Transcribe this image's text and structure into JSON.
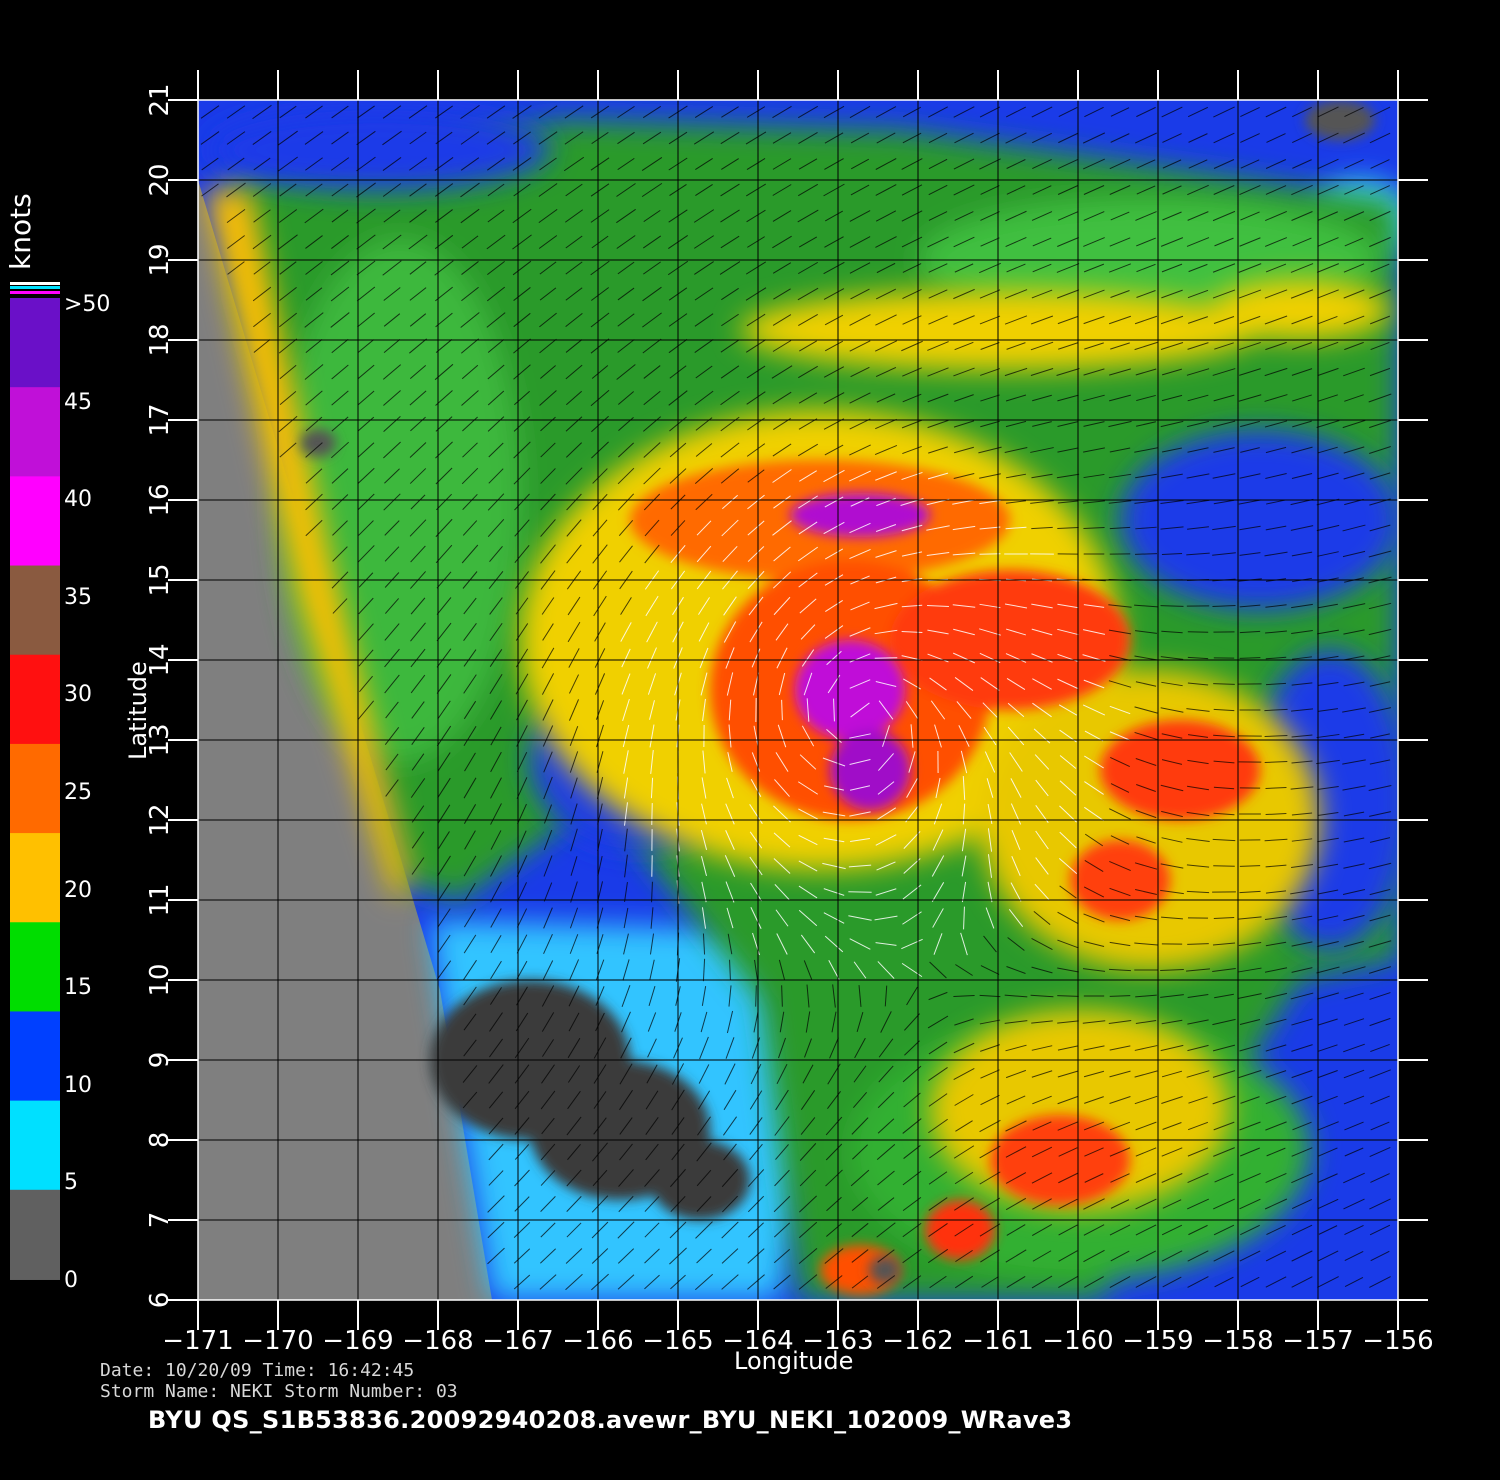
{
  "colorbar": {
    "title": "knots",
    "labels": [
      ">50",
      "45",
      "40",
      "35",
      "30",
      "25",
      "20",
      "15",
      "10",
      "5",
      "0"
    ],
    "colors": [
      "#6a10c8",
      "#c010d8",
      "#ff00ff",
      "#8a5a40",
      "#ff1010",
      "#ff6a00",
      "#ffc000",
      "#00dd00",
      "#0040ff",
      "#00e0ff",
      "#606060"
    ]
  },
  "axes": {
    "xlabel": "Longitude",
    "ylabel": "Latitude",
    "x_ticks": [
      "−171",
      "−170",
      "−169",
      "−168",
      "−167",
      "−166",
      "−165",
      "−164",
      "−163",
      "−162",
      "−161",
      "−160",
      "−159",
      "−158",
      "−157",
      "−156"
    ],
    "y_ticks": [
      "6",
      "7",
      "8",
      "9",
      "10",
      "11",
      "12",
      "13",
      "14",
      "15",
      "16",
      "17",
      "18",
      "19",
      "20",
      "21"
    ],
    "x_range": [
      -171,
      -156
    ],
    "y_range": [
      6,
      21
    ]
  },
  "storm": {
    "center_lon": -162.7,
    "center_lat": 13.3,
    "max_wind_category": ">50"
  },
  "meta": {
    "line1": "Date: 10/20/09   Time: 16:42:45",
    "line2": "Storm  Name: NEKI   Storm  Number: 03",
    "file": "BYU  QS_S1B53836.20092940208.avewr_BYU_NEKI_102009_WRave3"
  }
}
